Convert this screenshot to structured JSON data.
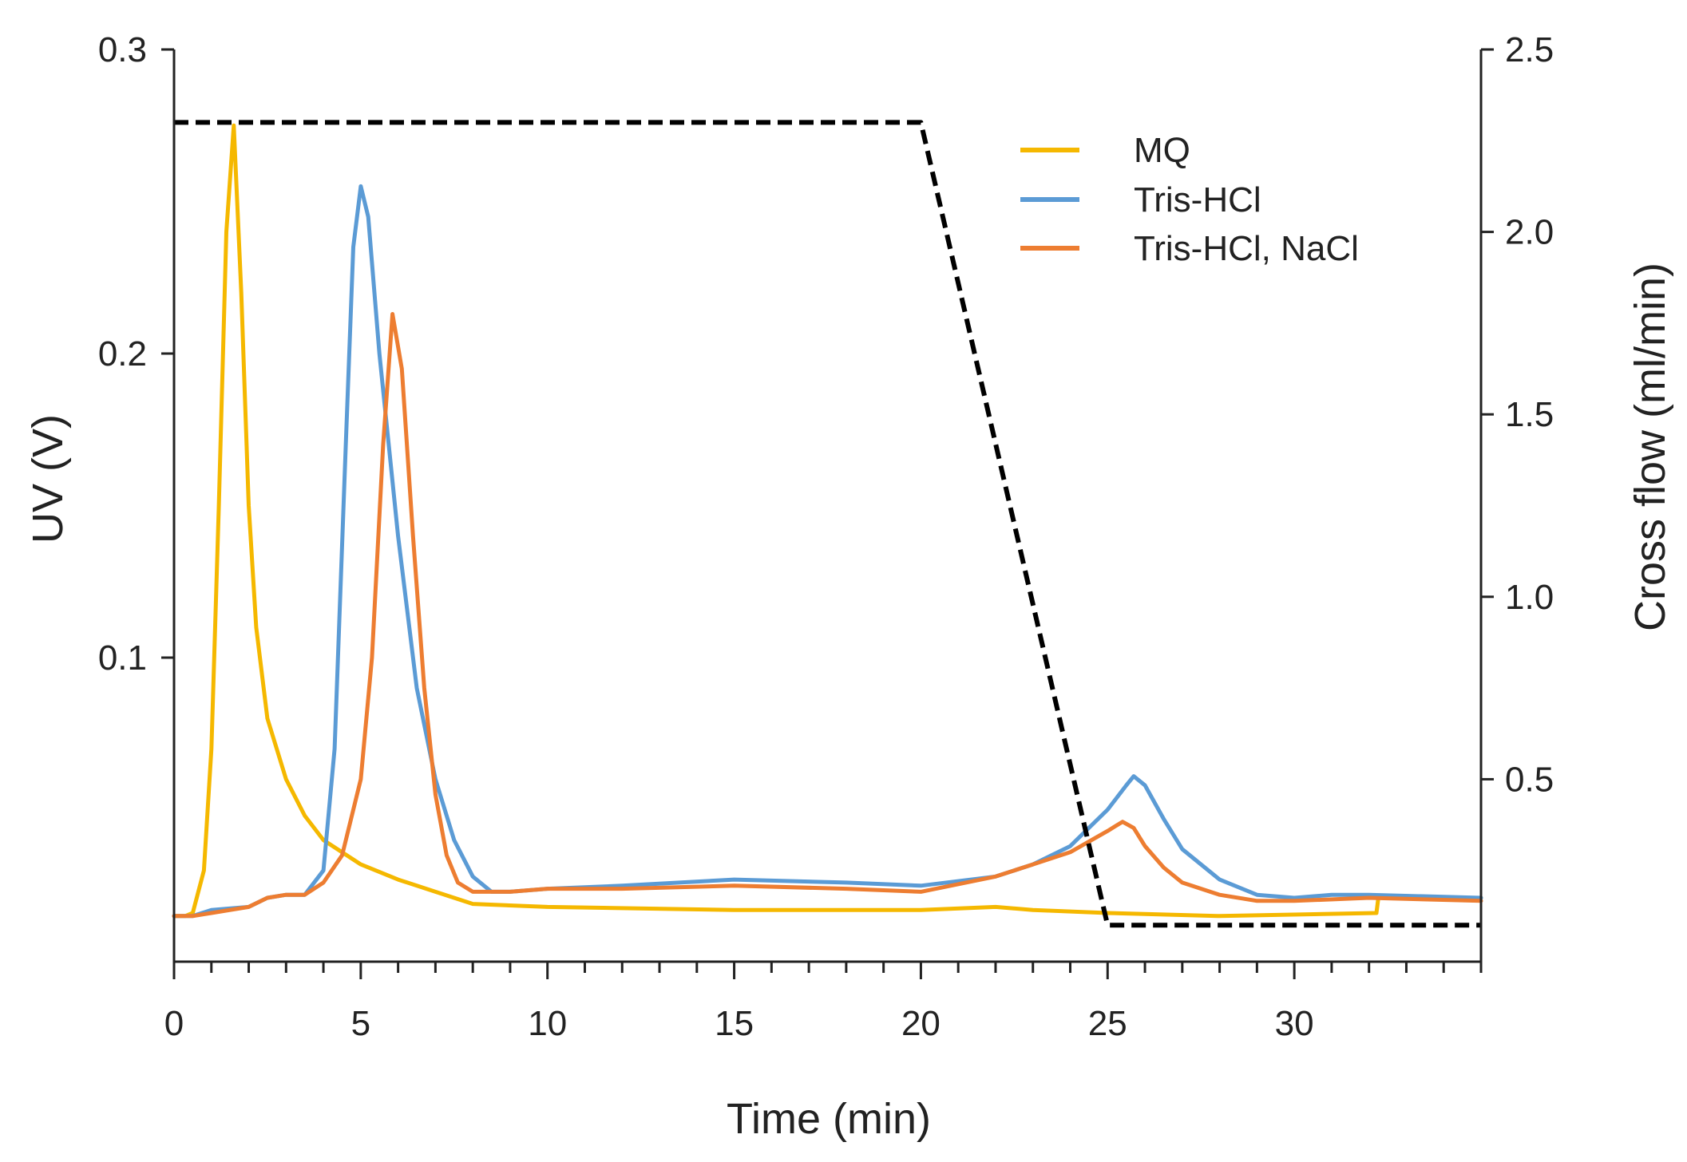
{
  "chart_data": {
    "type": "line",
    "title": "",
    "xlabel": "Time (min)",
    "ylabel": "UV (V)",
    "y2label": "Cross flow (ml/min)",
    "xlim": [
      0,
      35
    ],
    "ylim": [
      0,
      0.3
    ],
    "y2lim": [
      0,
      2.5
    ],
    "x_ticks": [
      0,
      5,
      10,
      15,
      20,
      25,
      30
    ],
    "x_tick_labels": [
      "0",
      "5",
      "10",
      "15",
      "20",
      "25",
      "30"
    ],
    "y_ticks": [
      0.1,
      0.2,
      0.3
    ],
    "y_tick_labels": [
      "0.1",
      "0.2",
      "0.3"
    ],
    "y2_ticks": [
      0.5,
      1.0,
      1.5,
      2.0,
      2.5
    ],
    "y2_tick_labels": [
      "0.5",
      "1.0",
      "1.5",
      "2.0",
      "2.5"
    ],
    "legend_position": "top-right",
    "series": [
      {
        "name": "MQ",
        "axis": "left",
        "color": "#F5B800",
        "style": "solid",
        "x": [
          0,
          0.3,
          0.5,
          0.8,
          1.0,
          1.2,
          1.4,
          1.6,
          1.8,
          2.0,
          2.2,
          2.5,
          3.0,
          3.5,
          4.0,
          5.0,
          6.0,
          7.0,
          8.0,
          10.0,
          15.0,
          20.0,
          22.0,
          23.0,
          25.0,
          28.0,
          32.2,
          32.25,
          35.0
        ],
        "y": [
          0.015,
          0.015,
          0.016,
          0.03,
          0.07,
          0.15,
          0.24,
          0.275,
          0.22,
          0.15,
          0.11,
          0.08,
          0.06,
          0.048,
          0.04,
          0.032,
          0.027,
          0.023,
          0.019,
          0.018,
          0.017,
          0.017,
          0.018,
          0.017,
          0.016,
          0.015,
          0.016,
          0.021,
          0.021
        ]
      },
      {
        "name": "Tris-HCl",
        "axis": "left",
        "color": "#5B9BD5",
        "style": "solid",
        "x": [
          0,
          0.5,
          1.0,
          2.0,
          2.5,
          3.0,
          3.5,
          4.0,
          4.3,
          4.6,
          4.8,
          5.0,
          5.2,
          5.5,
          6.0,
          6.5,
          7.0,
          7.5,
          8.0,
          8.5,
          9.0,
          10.0,
          12.0,
          15.0,
          18.0,
          20.0,
          22.0,
          23.0,
          24.0,
          25.0,
          25.5,
          25.7,
          26.0,
          26.5,
          27.0,
          28.0,
          29.0,
          30.0,
          31.0,
          32.0,
          35.0
        ],
        "y": [
          0.015,
          0.015,
          0.017,
          0.018,
          0.021,
          0.022,
          0.022,
          0.03,
          0.07,
          0.17,
          0.235,
          0.255,
          0.245,
          0.2,
          0.14,
          0.09,
          0.06,
          0.04,
          0.028,
          0.023,
          0.023,
          0.024,
          0.025,
          0.027,
          0.026,
          0.025,
          0.028,
          0.032,
          0.038,
          0.05,
          0.058,
          0.061,
          0.058,
          0.047,
          0.037,
          0.027,
          0.022,
          0.021,
          0.022,
          0.022,
          0.021
        ]
      },
      {
        "name": "Tris-HCl, NaCl",
        "axis": "left",
        "color": "#ED7D31",
        "style": "solid",
        "x": [
          0,
          0.5,
          1.0,
          2.0,
          2.5,
          3.0,
          3.5,
          4.0,
          4.5,
          5.0,
          5.3,
          5.6,
          5.85,
          6.1,
          6.4,
          6.7,
          7.0,
          7.3,
          7.6,
          8.0,
          9.0,
          10.0,
          12.0,
          15.0,
          18.0,
          20.0,
          22.0,
          23.0,
          24.0,
          25.0,
          25.4,
          25.7,
          26.0,
          26.5,
          27.0,
          28.0,
          29.0,
          30.0,
          32.0,
          35.0
        ],
        "y": [
          0.015,
          0.015,
          0.016,
          0.018,
          0.021,
          0.022,
          0.022,
          0.026,
          0.035,
          0.06,
          0.1,
          0.17,
          0.213,
          0.195,
          0.14,
          0.09,
          0.055,
          0.035,
          0.026,
          0.023,
          0.023,
          0.024,
          0.024,
          0.025,
          0.024,
          0.023,
          0.028,
          0.032,
          0.036,
          0.043,
          0.046,
          0.044,
          0.038,
          0.031,
          0.026,
          0.022,
          0.02,
          0.02,
          0.021,
          0.02
        ]
      },
      {
        "name": "Cross flow",
        "axis": "right",
        "color": "#000000",
        "style": "dashed",
        "x": [
          0,
          20,
          25,
          35
        ],
        "y": [
          2.3,
          2.3,
          0.1,
          0.1
        ]
      }
    ],
    "legend": [
      "MQ",
      "Tris-HCl",
      "Tris-HCl, NaCl"
    ]
  }
}
